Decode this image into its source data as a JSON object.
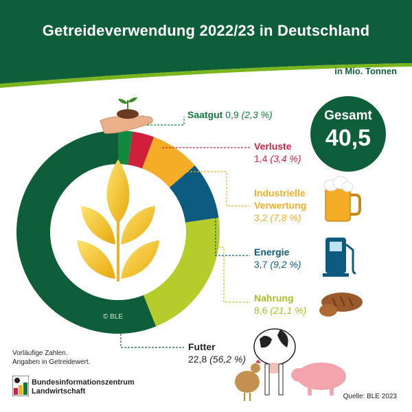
{
  "header": {
    "title": "Getreideverwendung 2022/23 in Deutschland"
  },
  "unit_label": "in Mio. Tonnen",
  "total": {
    "label": "Gesamt",
    "value": "40,5"
  },
  "copyright": "© BLE",
  "notes": [
    "Vorläufige Zahlen.",
    "Angaben in Getreidewert."
  ],
  "logo": {
    "name_lines": [
      "Bundesinformationszentrum",
      "Landwirtschaft"
    ]
  },
  "source": "Quelle: BLE 2023",
  "colors": {
    "header": "#0e5e3a",
    "accent": "#7ab51d"
  },
  "chart_data": {
    "type": "pie",
    "title": "Getreideverwendung 2022/23 in Deutschland",
    "unit": "in Mio. Tonnen",
    "total": 40.5,
    "slices": [
      {
        "name": "Saatgut",
        "value": 0.9,
        "value_label": "0,9",
        "percent_label": "(2,3 %)",
        "percent": 2.3,
        "color": "#0f8a3f"
      },
      {
        "name": "Verluste",
        "value": 1.4,
        "value_label": "1,4",
        "percent_label": "(3,4 %)",
        "percent": 3.4,
        "color": "#d01f3c"
      },
      {
        "name": "Industrielle Verwertung",
        "name_lines": [
          "Industrielle",
          "Verwertung"
        ],
        "value": 3.2,
        "value_label": "3,2",
        "percent_label": "(7,8 %)",
        "percent": 7.8,
        "color": "#f5ad27"
      },
      {
        "name": "Energie",
        "value": 3.7,
        "value_label": "3,7",
        "percent_label": "(9,2 %)",
        "percent": 9.2,
        "color": "#0d5b7e"
      },
      {
        "name": "Nahrung",
        "value": 8.6,
        "value_label": "8,6",
        "percent_label": "(21,1 %)",
        "percent": 21.1,
        "color": "#b5cc2a"
      },
      {
        "name": "Futter",
        "value": 22.8,
        "value_label": "22,8",
        "percent_label": "(56,2 %)",
        "percent": 56.2,
        "color": "#0e5e3a"
      }
    ]
  }
}
